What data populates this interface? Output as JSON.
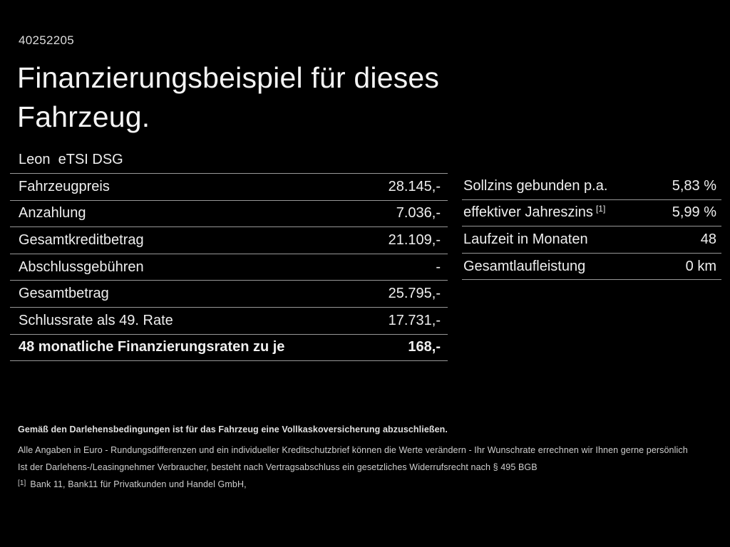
{
  "page": {
    "ref_number": "40252205",
    "title_line1": "Finanzierungsbeispiel für dieses",
    "title_line2": "Fahrzeug.",
    "model": "Leon  eTSI DSG"
  },
  "colors": {
    "background": "#000000",
    "text": "#f0f0f0",
    "divider": "#989898"
  },
  "finance_table": {
    "rows": [
      {
        "label": "Fahrzeugpreis",
        "value": "28.145,-"
      },
      {
        "label": "Anzahlung",
        "value": "7.036,-"
      },
      {
        "label": "Gesamtkreditbetrag",
        "value": "21.109,-"
      },
      {
        "label": "Abschlussgebühren",
        "value": "-"
      },
      {
        "label": "Gesamtbetrag",
        "value": "25.795,-"
      },
      {
        "label": "Schlussrate als 49. Rate",
        "value": "17.731,-"
      },
      {
        "label": "48 monatliche Finanzierungsraten zu je",
        "value": "168,-"
      }
    ]
  },
  "conditions_table": {
    "rows": [
      {
        "label": "Sollzins gebunden p.a.",
        "marker": "",
        "value": "5,83 %"
      },
      {
        "label": "effektiver Jahreszins",
        "marker": "[1]",
        "value": "5,99 %"
      },
      {
        "label": "Laufzeit in Monaten",
        "marker": "",
        "value": "48"
      },
      {
        "label": "Gesamtlaufleistung",
        "marker": "",
        "value": "0 km"
      }
    ]
  },
  "footer": {
    "insurance_note": "Gemäß den Darlehensbedingungen ist für das Fahrzeug eine Vollkaskoversicherung abzuschließen.",
    "line2": "Alle Angaben in Euro - Rundungsdifferenzen und ein individueller Kreditschutzbrief können die Werte verändern - Ihr Wunschrate errechnen wir Ihnen gerne persönlich",
    "line3": "Ist der Darlehens-/Leasingnehmer Verbraucher, besteht nach Vertragsabschluss ein gesetzliches Widerrufsrecht nach § 495 BGB",
    "footnote_marker": "[1]",
    "footnote_text": "Bank 11, Bank11 für Privatkunden und Handel GmbH,"
  }
}
